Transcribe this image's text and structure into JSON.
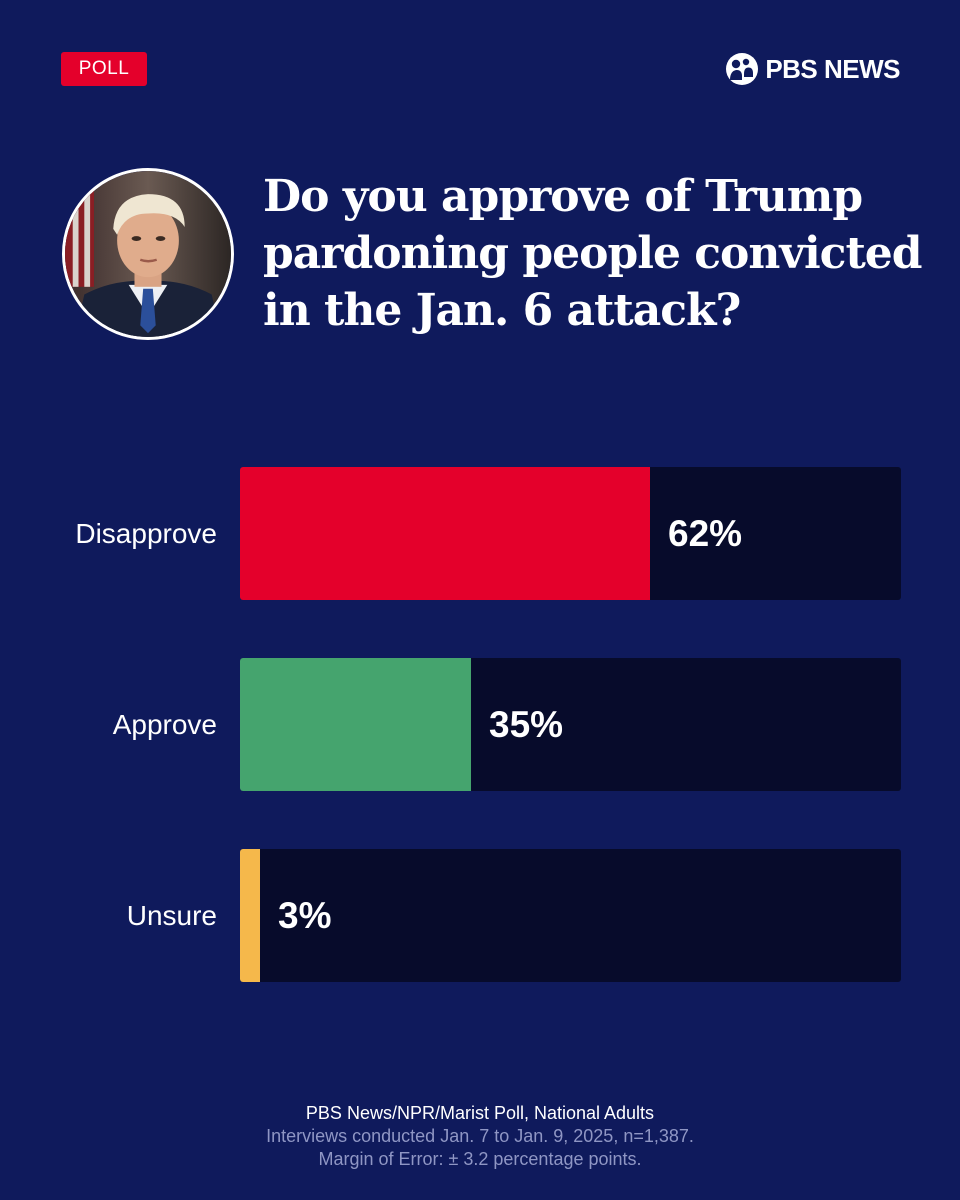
{
  "header": {
    "badge": "POLL",
    "brand": "PBS NEWS"
  },
  "question": "Do you approve of Trump pardoning people convicted in the Jan. 6 attack?",
  "colors": {
    "background": "#0f1a5c",
    "track": "#070b2b",
    "badge": "#e4002b"
  },
  "chart_data": {
    "type": "bar",
    "orientation": "horizontal",
    "title": "Do you approve of Trump pardoning people convicted in the Jan. 6 attack?",
    "categories": [
      "Disapprove",
      "Approve",
      "Unsure"
    ],
    "values": [
      62,
      35,
      3
    ],
    "value_labels": [
      "62%",
      "35%",
      "3%"
    ],
    "colors": [
      "#e4002b",
      "#45a46e",
      "#f5b84b"
    ],
    "xlim": [
      0,
      100
    ],
    "grid": false,
    "legend": "none"
  },
  "footer": {
    "source": "PBS News/NPR/Marist Poll, National Adults",
    "interviews": "Interviews conducted Jan. 7 to Jan. 9, 2025, n=1,387.",
    "margin": "Margin of Error: ± 3.2 percentage points."
  }
}
